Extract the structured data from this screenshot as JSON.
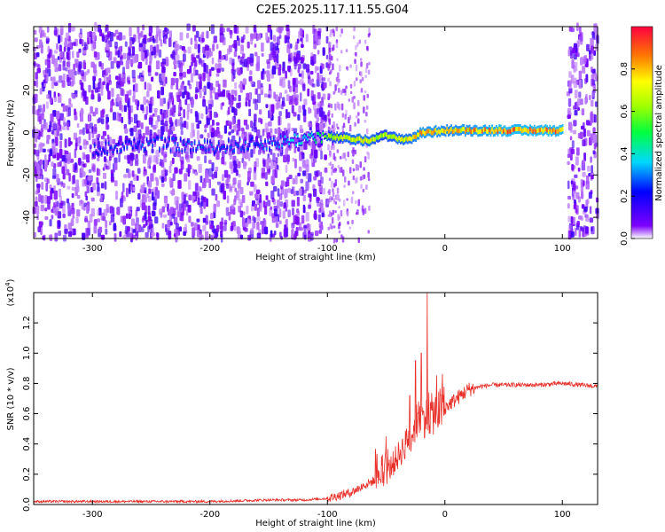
{
  "figure": {
    "title": "C2E5.2025.117.11.55.G04"
  },
  "chart_data": [
    {
      "type": "heatmap",
      "xlabel": "Height of straight line (km)",
      "ylabel": "Frequency (Hz)",
      "xlim": [
        -350,
        130
      ],
      "ylim": [
        -50,
        50
      ],
      "x_ticks": [
        -300,
        -200,
        -100,
        0,
        100
      ],
      "y_ticks": [
        -40,
        -20,
        0,
        20,
        40
      ],
      "colorbar": {
        "label": "Normalized spectral amplitude",
        "range": [
          0,
          1
        ],
        "ticks": [
          0.0,
          0.2,
          0.4,
          0.6,
          0.8
        ],
        "colormap": "rainbow"
      },
      "ridge": [
        {
          "x": -300,
          "f": -8,
          "amp": 0.25
        },
        {
          "x": -250,
          "f": -5,
          "amp": 0.3
        },
        {
          "x": -200,
          "f": -7,
          "amp": 0.3
        },
        {
          "x": -150,
          "f": -5,
          "amp": 0.3
        },
        {
          "x": -110,
          "f": -2,
          "amp": 0.5
        },
        {
          "x": -100,
          "f": -2,
          "amp": 0.7
        },
        {
          "x": -80,
          "f": -3,
          "amp": 0.8
        },
        {
          "x": -65,
          "f": -4,
          "amp": 0.8
        },
        {
          "x": -55,
          "f": -1,
          "amp": 0.7
        },
        {
          "x": -40,
          "f": -3,
          "amp": 0.8
        },
        {
          "x": -30,
          "f": -3,
          "amp": 0.8
        },
        {
          "x": -20,
          "f": 0,
          "amp": 0.9
        },
        {
          "x": 0,
          "f": 1,
          "amp": 0.85
        },
        {
          "x": 50,
          "f": 1,
          "amp": 0.95
        },
        {
          "x": 100,
          "f": 1,
          "amp": 0.95
        }
      ],
      "noise_regions": [
        {
          "x": [
            -350,
            -100
          ],
          "level": "strong"
        },
        {
          "x": [
            105,
            130
          ],
          "level": "strong"
        }
      ]
    },
    {
      "type": "line",
      "xlabel": "Height of straight line (km)",
      "ylabel": "SNR (10 * v/v)",
      "y_exponent_label": "(x10",
      "y_exponent": "4",
      "y_exponent_close": ")",
      "xlim": [
        -350,
        130
      ],
      "ylim": [
        0,
        1.4
      ],
      "x_ticks": [
        -300,
        -200,
        -100,
        0,
        100
      ],
      "y_ticks": [
        0.0,
        0.2,
        0.4,
        0.6,
        0.8,
        1.0,
        1.2
      ],
      "color": "#e8312a",
      "series": [
        {
          "x": [
            -350,
            -300,
            -250,
            -200,
            -150,
            -120,
            -100,
            -90,
            -80,
            -70,
            -60,
            -50,
            -45,
            -40,
            -35,
            -30,
            -25,
            -20,
            -15,
            -10,
            -5,
            0,
            10,
            20,
            30,
            40,
            60,
            80,
            100,
            130
          ],
          "values": [
            0.02,
            0.02,
            0.02,
            0.02,
            0.03,
            0.03,
            0.04,
            0.06,
            0.08,
            0.12,
            0.16,
            0.2,
            0.26,
            0.32,
            0.38,
            0.44,
            0.52,
            0.56,
            0.58,
            0.6,
            0.62,
            0.64,
            0.7,
            0.76,
            0.78,
            0.79,
            0.79,
            0.79,
            0.8,
            0.78
          ],
          "spikes": [
            {
              "x": -15,
              "value": 1.4
            },
            {
              "x": -20,
              "value": 1.0
            },
            {
              "x": -25,
              "value": 0.95
            },
            {
              "x": -30,
              "value": 0.72
            },
            {
              "x": -50,
              "value": 0.45
            }
          ]
        }
      ]
    }
  ]
}
